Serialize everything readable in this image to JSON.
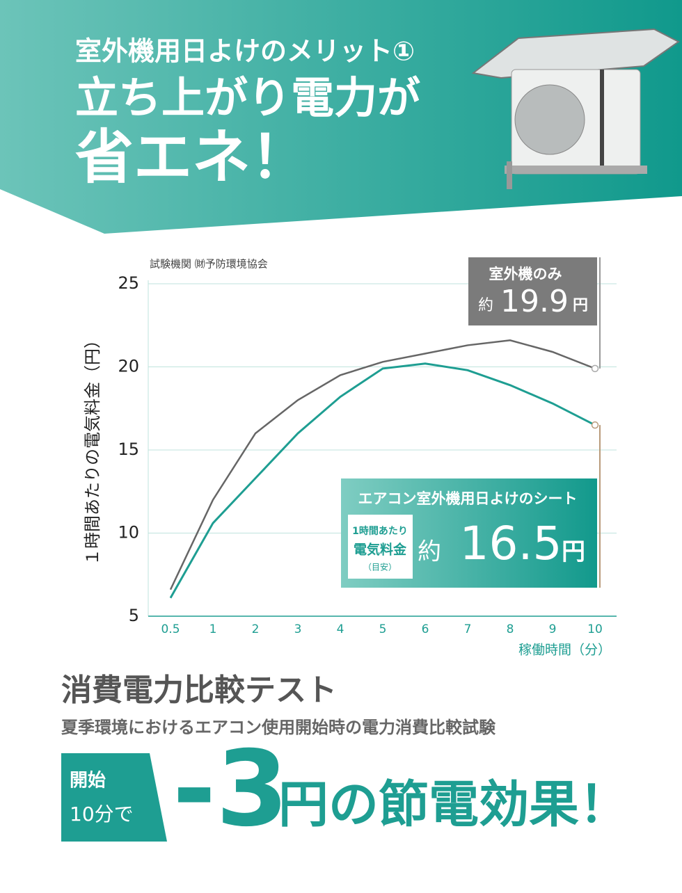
{
  "header": {
    "eyebrow": "室外機用日よけのメリット①",
    "title_line1": "立ち上がり電力が",
    "title_line2": "省エネ！"
  },
  "chart_data": {
    "type": "line",
    "source": "試験機関 ㈶予防環境協会",
    "y_label": "１時間あたりの電気料金（円）",
    "x_label": "稼働時間（分）",
    "categories": [
      "0.5",
      "1",
      "2",
      "3",
      "4",
      "5",
      "6",
      "7",
      "8",
      "9",
      "10"
    ],
    "series": [
      {
        "name": "室外機のみ",
        "color": "#666666",
        "values": [
          6.6,
          12.0,
          16.0,
          18.0,
          19.5,
          20.3,
          20.8,
          21.3,
          21.6,
          20.9,
          19.9
        ]
      },
      {
        "name": "エアコン室外機用日よけのシート",
        "color": "#1e9e92",
        "values": [
          6.1,
          10.6,
          13.3,
          16.0,
          18.2,
          19.9,
          20.2,
          19.8,
          18.9,
          17.8,
          16.5
        ]
      }
    ],
    "ylim": [
      5,
      25
    ],
    "yticks": [
      5,
      10,
      15,
      20,
      25
    ],
    "grid": true,
    "callout_prefix": "約",
    "callout_unit": "円",
    "callout_note": [
      "1時間あたり",
      "電気料金",
      "（目安）"
    ]
  },
  "footer": {
    "title": "消費電力比較テスト",
    "subtitle": "夏季環境におけるエアコン使用開始時の電力消費比較試験",
    "badge_line1": "開始",
    "badge_line2": "10分で",
    "big_number": "-3",
    "tagline": "円の節電効果！"
  }
}
